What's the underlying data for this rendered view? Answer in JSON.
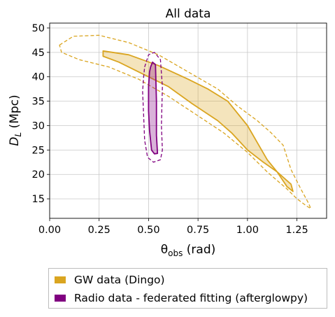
{
  "chart_data": {
    "type": "area",
    "title": "All data",
    "xlabel": "θ",
    "xlabel_subscript": "obs",
    "xlabel_unit": " (rad)",
    "ylabel": "D",
    "ylabel_subscript": "L",
    "ylabel_unit": " (Mpc)",
    "xlim": [
      0.0,
      1.4
    ],
    "ylim": [
      11.0,
      51.0
    ],
    "xticks": [
      0.0,
      0.25,
      0.5,
      0.75,
      1.0,
      1.25
    ],
    "xtick_labels": [
      "0.00",
      "0.25",
      "0.50",
      "0.75",
      "1.00",
      "1.25"
    ],
    "yticks": [
      15,
      20,
      25,
      30,
      35,
      40,
      45,
      50
    ],
    "ytick_labels": [
      "15",
      "20",
      "25",
      "30",
      "35",
      "40",
      "45",
      "50"
    ],
    "grid": true,
    "legend_position": "below",
    "series": [
      {
        "name": "GW data (Dingo)",
        "color": "#DAA520",
        "inner_contour": [
          [
            0.27,
            45.3
          ],
          [
            0.4,
            44.5
          ],
          [
            0.55,
            42.3
          ],
          [
            0.7,
            39.5
          ],
          [
            0.8,
            37.5
          ],
          [
            0.9,
            35.0
          ],
          [
            1.0,
            30.0
          ],
          [
            1.05,
            26.5
          ],
          [
            1.1,
            23.0
          ],
          [
            1.15,
            20.5
          ],
          [
            1.2,
            17.5
          ],
          [
            1.23,
            16.5
          ],
          [
            1.22,
            18.0
          ],
          [
            1.15,
            20.5
          ],
          [
            1.08,
            22.5
          ],
          [
            1.0,
            25.0
          ],
          [
            0.92,
            28.5
          ],
          [
            0.85,
            31.0
          ],
          [
            0.72,
            34.5
          ],
          [
            0.6,
            38.0
          ],
          [
            0.45,
            41.0
          ],
          [
            0.35,
            43.0
          ],
          [
            0.27,
            44.2
          ]
        ],
        "outer_contour": [
          [
            0.05,
            46.5
          ],
          [
            0.12,
            48.3
          ],
          [
            0.25,
            48.5
          ],
          [
            0.4,
            47.0
          ],
          [
            0.55,
            44.5
          ],
          [
            0.7,
            41.0
          ],
          [
            0.85,
            37.5
          ],
          [
            0.95,
            34.0
          ],
          [
            1.05,
            31.0
          ],
          [
            1.12,
            28.5
          ],
          [
            1.18,
            26.0
          ],
          [
            1.22,
            21.0
          ],
          [
            1.27,
            17.0
          ],
          [
            1.31,
            14.0
          ],
          [
            1.32,
            13.0
          ],
          [
            1.3,
            13.5
          ],
          [
            1.25,
            15.0
          ],
          [
            1.2,
            17.0
          ],
          [
            1.1,
            20.5
          ],
          [
            1.0,
            24.5
          ],
          [
            0.88,
            28.5
          ],
          [
            0.75,
            32.0
          ],
          [
            0.6,
            36.0
          ],
          [
            0.45,
            39.5
          ],
          [
            0.3,
            42.0
          ],
          [
            0.15,
            43.5
          ],
          [
            0.06,
            45.0
          ]
        ]
      },
      {
        "name": "Radio data - federated fitting (afterglowpy)",
        "color": "#800080",
        "inner_contour": [
          [
            0.51,
            42.0
          ],
          [
            0.52,
            43.0
          ],
          [
            0.535,
            42.5
          ],
          [
            0.54,
            35.0
          ],
          [
            0.54,
            28.0
          ],
          [
            0.545,
            24.3
          ],
          [
            0.53,
            24.2
          ],
          [
            0.515,
            25.0
          ],
          [
            0.505,
            29.0
          ],
          [
            0.5,
            33.0
          ],
          [
            0.5,
            38.0
          ],
          [
            0.505,
            41.0
          ]
        ],
        "outer_contour": [
          [
            0.48,
            42.0
          ],
          [
            0.5,
            44.5
          ],
          [
            0.53,
            45.0
          ],
          [
            0.56,
            43.5
          ],
          [
            0.57,
            38.0
          ],
          [
            0.565,
            30.0
          ],
          [
            0.57,
            25.0
          ],
          [
            0.56,
            23.0
          ],
          [
            0.525,
            22.5
          ],
          [
            0.495,
            23.5
          ],
          [
            0.48,
            27.0
          ],
          [
            0.475,
            32.0
          ],
          [
            0.47,
            37.0
          ],
          [
            0.475,
            40.0
          ]
        ]
      }
    ]
  }
}
